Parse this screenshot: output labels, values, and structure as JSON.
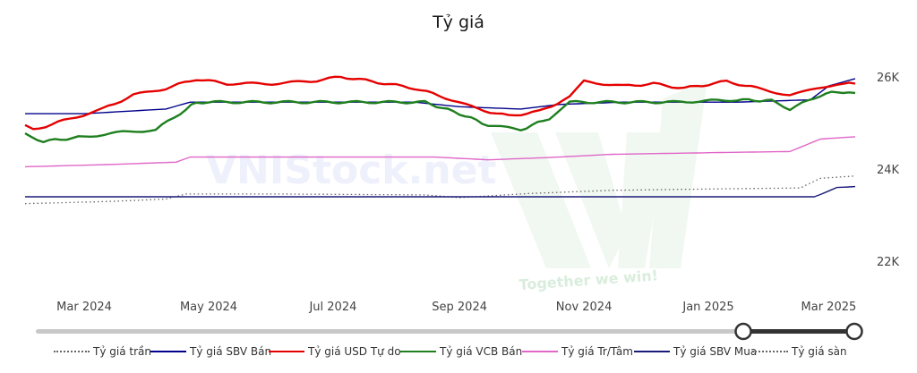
{
  "chart_data": {
    "type": "line",
    "title": "Tỷ giá",
    "xlabel": "",
    "ylabel": "",
    "x_ticks": [
      "Mar 2024",
      "May 2024",
      "Jul 2024",
      "Sep 2024",
      "Nov 2024",
      "Jan 2025",
      "Mar 2025"
    ],
    "y_ticks": [
      "22K",
      "24K",
      "26K"
    ],
    "ylim": [
      21500,
      26500
    ],
    "x_range": [
      "2024-02-01",
      "2025-03-14"
    ],
    "grid": false,
    "legend_position": "bottom",
    "watermark": {
      "text": "VNIStock.net",
      "slogan": "Together we win!"
    },
    "series": [
      {
        "name": "Tỷ giá trần",
        "color": "#666666",
        "style": "dotted",
        "points": [
          [
            "2024-02-01",
            23250
          ],
          [
            "2024-03-15",
            23300
          ],
          [
            "2024-04-10",
            23350
          ],
          [
            "2024-04-20",
            23460
          ],
          [
            "2024-06-01",
            23460
          ],
          [
            "2024-08-15",
            23440
          ],
          [
            "2024-09-01",
            23380
          ],
          [
            "2024-10-05",
            23470
          ],
          [
            "2024-11-15",
            23540
          ],
          [
            "2025-01-05",
            23570
          ],
          [
            "2025-02-15",
            23590
          ],
          [
            "2025-02-25",
            23800
          ],
          [
            "2025-03-14",
            23850
          ]
        ]
      },
      {
        "name": "Tỷ giá SBV Bán",
        "color": "#00008b",
        "style": "solid",
        "points": [
          [
            "2024-02-01",
            25200
          ],
          [
            "2024-03-01",
            25200
          ],
          [
            "2024-04-10",
            25300
          ],
          [
            "2024-04-22",
            25450
          ],
          [
            "2024-08-10",
            25450
          ],
          [
            "2024-09-01",
            25350
          ],
          [
            "2024-10-01",
            25300
          ],
          [
            "2024-10-20",
            25400
          ],
          [
            "2024-11-20",
            25450
          ],
          [
            "2025-01-15",
            25450
          ],
          [
            "2025-02-20",
            25500
          ],
          [
            "2025-03-01",
            25800
          ],
          [
            "2025-03-14",
            25960
          ]
        ]
      },
      {
        "name": "Tỷ giá USD Tự do",
        "color": "#e50000",
        "style": "solid",
        "points": [
          [
            "2024-02-01",
            24950
          ],
          [
            "2024-02-05",
            24850
          ],
          [
            "2024-02-20",
            25050
          ],
          [
            "2024-03-10",
            25300
          ],
          [
            "2024-03-25",
            25600
          ],
          [
            "2024-04-10",
            25750
          ],
          [
            "2024-04-25",
            25950
          ],
          [
            "2024-05-10",
            25850
          ],
          [
            "2024-06-01",
            25850
          ],
          [
            "2024-06-20",
            25900
          ],
          [
            "2024-07-05",
            26000
          ],
          [
            "2024-07-20",
            25900
          ],
          [
            "2024-08-10",
            25750
          ],
          [
            "2024-08-25",
            25550
          ],
          [
            "2024-09-10",
            25300
          ],
          [
            "2024-09-25",
            25150
          ],
          [
            "2024-10-10",
            25250
          ],
          [
            "2024-10-25",
            25550
          ],
          [
            "2024-11-01",
            25900
          ],
          [
            "2024-11-20",
            25800
          ],
          [
            "2024-12-05",
            25850
          ],
          [
            "2024-12-20",
            25750
          ],
          [
            "2025-01-10",
            25900
          ],
          [
            "2025-01-25",
            25750
          ],
          [
            "2025-02-10",
            25600
          ],
          [
            "2025-02-20",
            25700
          ],
          [
            "2025-03-05",
            25850
          ],
          [
            "2025-03-14",
            25850
          ]
        ]
      },
      {
        "name": "Tỷ giá VCB Bán",
        "color": "#1e7f1e",
        "style": "solid",
        "points": [
          [
            "2024-02-01",
            24750
          ],
          [
            "2024-02-10",
            24600
          ],
          [
            "2024-03-01",
            24700
          ],
          [
            "2024-03-20",
            24800
          ],
          [
            "2024-04-05",
            24850
          ],
          [
            "2024-04-20",
            25300
          ],
          [
            "2024-04-25",
            25450
          ],
          [
            "2024-08-15",
            25450
          ],
          [
            "2024-09-01",
            25200
          ],
          [
            "2024-09-15",
            24950
          ],
          [
            "2024-10-01",
            24850
          ],
          [
            "2024-10-15",
            25100
          ],
          [
            "2024-10-25",
            25450
          ],
          [
            "2024-12-15",
            25450
          ],
          [
            "2025-01-15",
            25500
          ],
          [
            "2025-02-01",
            25480
          ],
          [
            "2025-02-10",
            25300
          ],
          [
            "2025-02-25",
            25600
          ],
          [
            "2025-03-05",
            25680
          ],
          [
            "2025-03-14",
            25650
          ]
        ]
      },
      {
        "name": "Tỷ giá Tr/Tâm",
        "color": "#e066c8",
        "style": "solid",
        "points": [
          [
            "2024-02-01",
            24050
          ],
          [
            "2024-03-15",
            24100
          ],
          [
            "2024-04-15",
            24150
          ],
          [
            "2024-04-22",
            24260
          ],
          [
            "2024-08-20",
            24260
          ],
          [
            "2024-09-15",
            24200
          ],
          [
            "2024-10-15",
            24250
          ],
          [
            "2024-11-15",
            24320
          ],
          [
            "2025-01-10",
            24360
          ],
          [
            "2025-02-10",
            24380
          ],
          [
            "2025-02-25",
            24650
          ],
          [
            "2025-03-14",
            24700
          ]
        ]
      },
      {
        "name": "Tỷ giá SBV Mua",
        "color": "#1a1a7a",
        "style": "solid",
        "points": [
          [
            "2024-02-01",
            23400
          ],
          [
            "2025-02-22",
            23400
          ],
          [
            "2025-02-25",
            23450
          ],
          [
            "2025-03-05",
            23600
          ],
          [
            "2025-03-14",
            23620
          ]
        ]
      },
      {
        "name": "Tỷ giá sàn",
        "color": "#666666",
        "style": "dotted",
        "points": []
      }
    ]
  }
}
